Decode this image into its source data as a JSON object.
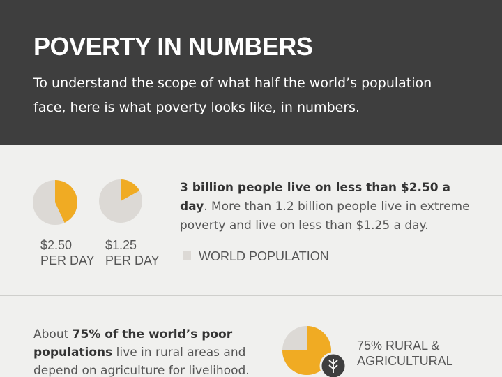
{
  "header": {
    "title": "POVERTY IN NUMBERS",
    "subtitle": "To understand the scope of what half the world’s population face, here is what poverty looks like, in numbers."
  },
  "colors": {
    "highlight": "#f0ab23",
    "rest": "#dcd9d5"
  },
  "section1": {
    "pies": [
      {
        "value": 43,
        "label_lines": [
          "$2.50",
          "PER DAY"
        ]
      },
      {
        "value": 17,
        "label_lines": [
          "$1.25",
          "PER DAY"
        ]
      }
    ],
    "statement": {
      "bold": "3 billion people live on less than $2.50 a day",
      "rest": ". More than 1.2 billion people live in extreme poverty and live on less than $1.25 a day."
    },
    "legend": "WORLD POPULATION"
  },
  "section2": {
    "text": {
      "start": "About ",
      "bold": "75% of the world’s poor populations",
      "rest": " live in rural areas and depend on agriculture for livelihood."
    },
    "pie": {
      "value": 75,
      "label_lines": [
        "75% RURAL &",
        "AGRICULTURAL"
      ]
    }
  }
}
